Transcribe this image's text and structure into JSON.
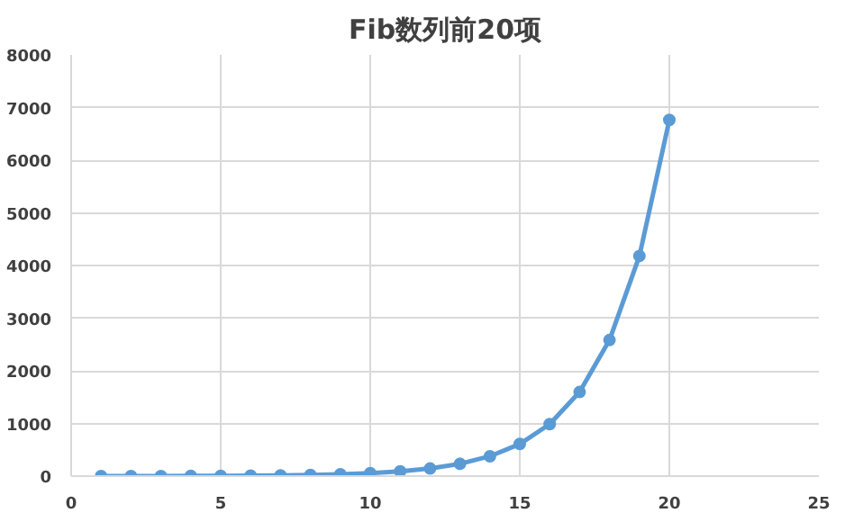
{
  "chart_data": {
    "type": "line",
    "title": "Fib数列前20项",
    "x": [
      1,
      2,
      3,
      4,
      5,
      6,
      7,
      8,
      9,
      10,
      11,
      12,
      13,
      14,
      15,
      16,
      17,
      18,
      19,
      20
    ],
    "series": [
      {
        "color": "#5b9bd5",
        "values": [
          1,
          1,
          2,
          3,
          5,
          8,
          13,
          21,
          34,
          55,
          89,
          144,
          233,
          377,
          610,
          987,
          1597,
          2584,
          4181,
          6765
        ]
      }
    ],
    "xlim": [
      0,
      25
    ],
    "xticks": [
      0,
      5,
      10,
      15,
      20,
      25
    ],
    "ylim": [
      0,
      8000
    ],
    "yticks": [
      0,
      1000,
      2000,
      3000,
      4000,
      5000,
      6000,
      7000,
      8000
    ],
    "grid": true,
    "marker": "circle",
    "line_style": "solid"
  }
}
